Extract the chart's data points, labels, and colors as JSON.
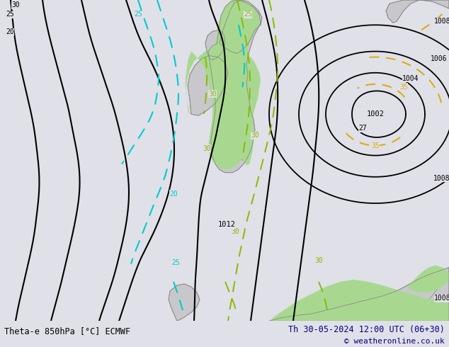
{
  "title_left": "Theta-e 850hPa [°C] ECMWF",
  "title_right": "Th 30-05-2024 12:00 UTC (06+30)",
  "copyright": "© weatheronline.co.uk",
  "bg_color": "#e0e0e8",
  "sea_color": "#e0e0e8",
  "land_color": "#c8c8cc",
  "green_fill_color": "#a8d890",
  "fig_width": 6.34,
  "fig_height": 4.9,
  "dpi": 100,
  "title_fontsize": 8.5,
  "label_fontsize": 7,
  "bottom_bar_color": "#d8d8d8",
  "black_line_color": "#000000",
  "cyan_color": "#00cccc",
  "green_dash_color": "#88bb00",
  "yellow_dash_color": "#ddaa00"
}
